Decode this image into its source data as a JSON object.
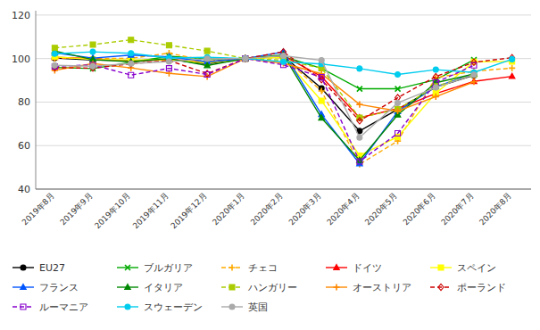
{
  "chart_data": {
    "type": "line",
    "categories": [
      "2019年8月",
      "2019年9月",
      "2019年10月",
      "2019年11月",
      "2019年12月",
      "2020年1月",
      "2020年2月",
      "2020年3月",
      "2020年4月",
      "2020年5月",
      "2020年6月",
      "2020年7月",
      "2020年8月"
    ],
    "series": [
      {
        "name": "EU27",
        "color": "#000000",
        "marker": "circle",
        "line_style": "solid",
        "values": [
          100.2,
          99.3,
          99.1,
          99.5,
          97.6,
          100.0,
          101.1,
          86.3,
          66.7,
          76.6,
          86.9,
          92.3,
          null
        ]
      },
      {
        "name": "ブルガリア",
        "color": "#00aa00",
        "marker": "x",
        "line_style": "solid",
        "values": [
          95.9,
          95.4,
          98.2,
          101.1,
          99.8,
          100.0,
          100.9,
          95.5,
          86.1,
          86.1,
          90.3,
          99.4,
          null
        ]
      },
      {
        "name": "チェコ",
        "color": "#ffaa00",
        "marker": "plus",
        "line_style": "dashed",
        "values": [
          100.1,
          100.1,
          100.1,
          102.5,
          98.9,
          100.0,
          100.4,
          85.1,
          51.4,
          62.1,
          91.2,
          94.2,
          95.6
        ]
      },
      {
        "name": "ドイツ",
        "color": "#ff0000",
        "marker": "triangle",
        "line_style": "solid",
        "values": [
          100.6,
          100.0,
          98.6,
          99.6,
          98.6,
          100.0,
          101.3,
          91.7,
          72.8,
          77.0,
          83.9,
          89.5,
          91.8
        ]
      },
      {
        "name": "スペイン",
        "color": "#ffff00",
        "marker": "square",
        "line_style": "solid",
        "values": [
          100.8,
          99.6,
          99.4,
          99.5,
          98.0,
          100.0,
          100.6,
          80.6,
          55.4,
          64.0,
          84.1,
          98.5,
          98.7
        ]
      },
      {
        "name": "フランス",
        "color": "#0055ff",
        "marker": "triangle",
        "line_style": "solid",
        "values": [
          102.6,
          100.2,
          101.6,
          100.8,
          98.5,
          100.0,
          103.0,
          74.3,
          51.7,
          75.7,
          87.1,
          92.9,
          null
        ]
      },
      {
        "name": "イタリア",
        "color": "#008800",
        "marker": "triangle",
        "line_style": "solid",
        "values": [
          103.5,
          99.5,
          98.5,
          100.0,
          96.8,
          100.0,
          101.7,
          72.7,
          53.2,
          74.1,
          88.9,
          92.9,
          null
        ]
      },
      {
        "name": "ハンガリー",
        "color": "#aacc00",
        "marker": "square",
        "line_style": "dashed",
        "values": [
          104.9,
          106.4,
          108.6,
          106.1,
          103.5,
          100.0,
          99.3,
          95.6,
          72.8,
          76.7,
          87.2,
          92.6,
          null
        ]
      },
      {
        "name": "オーストリア",
        "color": "#ff8800",
        "marker": "plus",
        "line_style": "solid",
        "values": [
          94.6,
          97.7,
          95.7,
          93.2,
          91.7,
          100.0,
          97.8,
          93.0,
          78.9,
          75.9,
          82.5,
          89.3,
          null
        ]
      },
      {
        "name": "ポーランド",
        "color": "#cc0000",
        "marker": "open-diamond",
        "line_style": "dashed",
        "values": [
          95.8,
          95.6,
          97.6,
          99.1,
          93.1,
          100.0,
          103.1,
          90.3,
          71.4,
          82.0,
          91.7,
          98.3,
          100.4
        ]
      },
      {
        "name": "ルーマニア",
        "color": "#8800cc",
        "marker": "open-square",
        "line_style": "dashed",
        "values": [
          96.4,
          97.1,
          92.4,
          95.5,
          92.7,
          100.0,
          97.1,
          91.4,
          52.7,
          65.6,
          89.0,
          96.9,
          null
        ]
      },
      {
        "name": "スウェーデン",
        "color": "#00ccee",
        "marker": "circle",
        "line_style": "solid",
        "values": [
          102.2,
          103.1,
          102.4,
          100.3,
          100.6,
          100.0,
          98.5,
          97.5,
          95.4,
          92.7,
          94.9,
          93.6,
          99.7
        ]
      },
      {
        "name": "英国",
        "color": "#aaaaaa",
        "marker": "circle",
        "line_style": "solid",
        "values": [
          96.9,
          96.5,
          97.7,
          98.6,
          99.9,
          100.0,
          101.3,
          99.2,
          63.7,
          79.6,
          86.7,
          92.6,
          null
        ]
      }
    ],
    "ylim": [
      40.0,
      122.0
    ],
    "yticks": [
      40.0,
      60.0,
      80.0,
      100.0,
      120.0
    ],
    "grid": true,
    "legend": "bottom"
  }
}
